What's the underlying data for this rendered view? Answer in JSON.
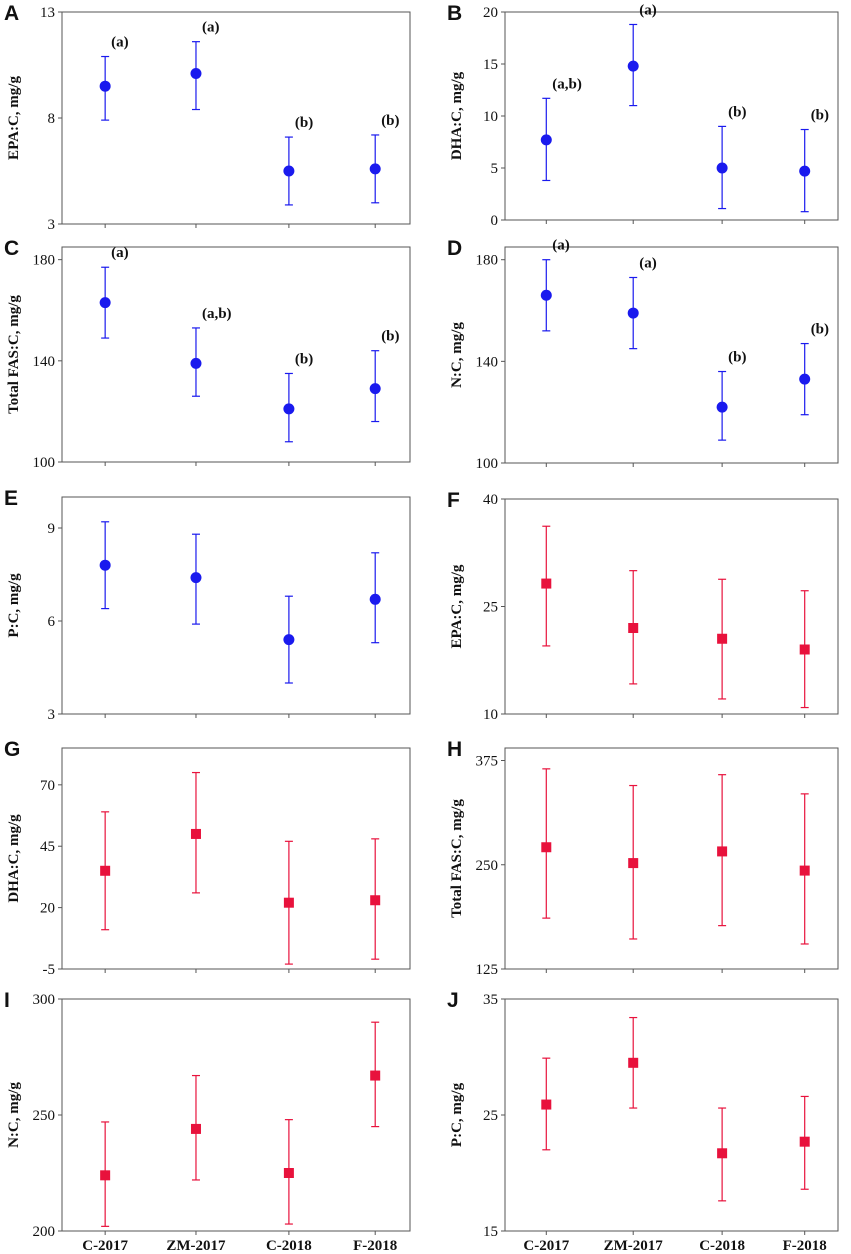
{
  "figure": {
    "categories": [
      "C-2017",
      "ZM-2017",
      "C-2018",
      "F-2018"
    ],
    "colors": {
      "blue": "#1a1aee",
      "red": "#e8123c",
      "axis": "#555555",
      "text": "#111111"
    }
  },
  "chart_data": [
    {
      "panel": "A",
      "type": "scatter",
      "marker": "circle",
      "color": "blue",
      "ylabel": "EPA:C, mg/g",
      "ylim": [
        3,
        13
      ],
      "yticks": [
        3,
        8,
        13
      ],
      "means": [
        9.5,
        10.1,
        5.5,
        5.6
      ],
      "lower": [
        7.9,
        8.4,
        3.9,
        4.0
      ],
      "upper": [
        10.9,
        11.6,
        7.1,
        7.2
      ],
      "annotations": [
        "(a)",
        "(a)",
        "(b)",
        "(b)"
      ]
    },
    {
      "panel": "B",
      "type": "scatter",
      "marker": "circle",
      "color": "blue",
      "ylabel": "DHA:C, mg/g",
      "ylim": [
        0,
        20
      ],
      "yticks": [
        0,
        5,
        10,
        15,
        20
      ],
      "means": [
        7.7,
        14.8,
        5.0,
        4.7
      ],
      "lower": [
        3.8,
        11.0,
        1.1,
        0.8
      ],
      "upper": [
        11.7,
        18.8,
        9.0,
        8.7
      ],
      "annotations": [
        "(a,b)",
        "(a)",
        "(b)",
        "(b)"
      ]
    },
    {
      "panel": "C",
      "type": "scatter",
      "marker": "circle",
      "color": "blue",
      "ylabel": "Total FAS:C, mg/g",
      "ylim": [
        100,
        185
      ],
      "yticks": [
        100,
        140,
        180
      ],
      "means": [
        163,
        139,
        121,
        129
      ],
      "lower": [
        149,
        126,
        108,
        116
      ],
      "upper": [
        177,
        153,
        135,
        144
      ],
      "annotations": [
        "(a)",
        "(a,b)",
        "(b)",
        "(b)"
      ]
    },
    {
      "panel": "D",
      "type": "scatter",
      "marker": "circle",
      "color": "blue",
      "ylabel": "N:C, mg/g",
      "ylim": [
        100,
        185
      ],
      "yticks": [
        100,
        140,
        180
      ],
      "means": [
        166,
        159,
        122,
        133
      ],
      "lower": [
        152,
        145,
        109,
        119
      ],
      "upper": [
        180,
        173,
        136,
        147
      ],
      "annotations": [
        "(a)",
        "(a)",
        "(b)",
        "(b)"
      ]
    },
    {
      "panel": "E",
      "type": "scatter",
      "marker": "circle",
      "color": "blue",
      "ylabel": "P:C, mg/g",
      "ylim": [
        3,
        10
      ],
      "yticks": [
        3,
        6,
        9
      ],
      "means": [
        7.8,
        7.4,
        5.4,
        6.7
      ],
      "lower": [
        6.4,
        5.9,
        4.0,
        5.3
      ],
      "upper": [
        9.2,
        8.8,
        6.8,
        8.2
      ],
      "annotations": []
    },
    {
      "panel": "F",
      "type": "scatter",
      "marker": "square",
      "color": "red",
      "ylabel": "EPA:C, mg/g",
      "ylim": [
        10,
        40
      ],
      "yticks": [
        10,
        25,
        40
      ],
      "means": [
        28.2,
        22.0,
        20.5,
        19.0
      ],
      "lower": [
        19.5,
        14.2,
        12.1,
        10.9
      ],
      "upper": [
        36.2,
        30.0,
        28.8,
        27.2
      ],
      "annotations": []
    },
    {
      "panel": "G",
      "type": "scatter",
      "marker": "square",
      "color": "red",
      "ylabel": "DHA:C, mg/g",
      "ylim": [
        -5,
        85
      ],
      "yticks": [
        -5,
        20,
        45,
        70
      ],
      "means": [
        35,
        50,
        22,
        23
      ],
      "lower": [
        11,
        26,
        -3,
        -1
      ],
      "upper": [
        59,
        75,
        47,
        48
      ],
      "annotations": []
    },
    {
      "panel": "H",
      "type": "scatter",
      "marker": "square",
      "color": "red",
      "ylabel": "Total FAS:C, mg/g",
      "ylim": [
        125,
        390
      ],
      "yticks": [
        125,
        250,
        375
      ],
      "means": [
        271,
        252,
        266,
        243
      ],
      "lower": [
        186,
        161,
        177,
        155
      ],
      "upper": [
        365,
        345,
        358,
        335
      ],
      "annotations": []
    },
    {
      "panel": "I",
      "type": "scatter",
      "marker": "square",
      "color": "red",
      "ylabel": "N:C, mg/g",
      "ylim": [
        200,
        300
      ],
      "yticks": [
        200,
        250,
        300
      ],
      "means": [
        224,
        244,
        225,
        267
      ],
      "lower": [
        202,
        222,
        203,
        245
      ],
      "upper": [
        247,
        267,
        248,
        290
      ],
      "annotations": []
    },
    {
      "panel": "J",
      "type": "scatter",
      "marker": "square",
      "color": "red",
      "ylabel": "P:C, mg/g",
      "ylim": [
        15,
        35
      ],
      "yticks": [
        15,
        25,
        35
      ],
      "means": [
        25.9,
        29.5,
        21.7,
        22.7
      ],
      "lower": [
        22.0,
        25.6,
        17.6,
        18.6
      ],
      "upper": [
        29.9,
        33.4,
        25.6,
        26.6
      ],
      "annotations": []
    }
  ]
}
